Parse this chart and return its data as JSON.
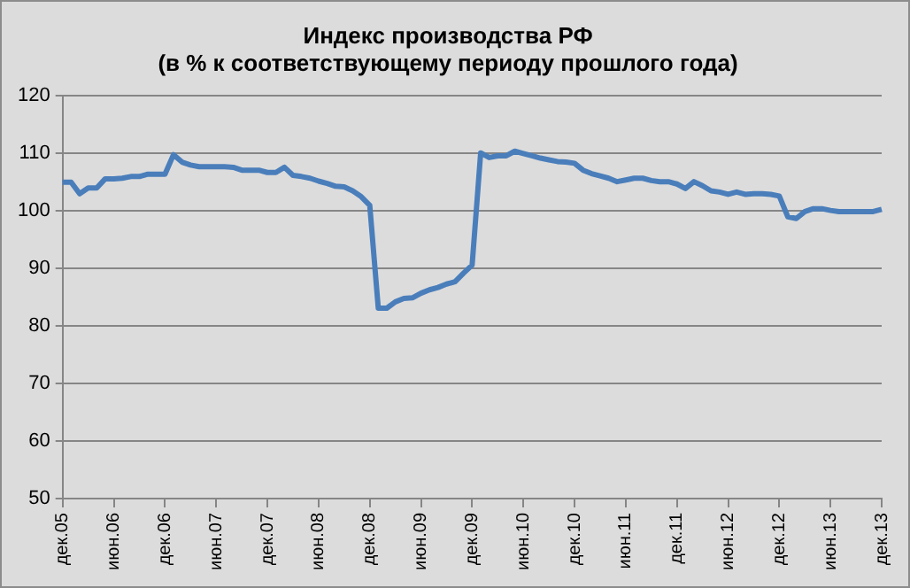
{
  "chart_data": {
    "type": "line",
    "title": "Индекс производства РФ\n(в % к соответствующему периоду прошлого года)",
    "categories": [
      "дек.05",
      null,
      null,
      null,
      null,
      null,
      "июн.06",
      null,
      null,
      null,
      null,
      null,
      "дек.06",
      null,
      null,
      null,
      null,
      null,
      "июн.07",
      null,
      null,
      null,
      null,
      null,
      "дек.07",
      null,
      null,
      null,
      null,
      null,
      "июн.08",
      null,
      null,
      null,
      null,
      null,
      "дек.08",
      null,
      null,
      null,
      null,
      null,
      "июн.09",
      null,
      null,
      null,
      null,
      null,
      "дек.09",
      null,
      null,
      null,
      null,
      null,
      "июн.10",
      null,
      null,
      null,
      null,
      null,
      "дек.10",
      null,
      null,
      null,
      null,
      null,
      "июн.11",
      null,
      null,
      null,
      null,
      null,
      "дек.11",
      null,
      null,
      null,
      null,
      null,
      "июн.12",
      null,
      null,
      null,
      null,
      null,
      "дек.12",
      null,
      null,
      null,
      null,
      null,
      "июн.13",
      null,
      null,
      null,
      null,
      null,
      "дек.13"
    ],
    "series": [
      {
        "color": "#4a7ebb",
        "values": [
          105,
          105,
          103,
          104,
          104,
          105.6,
          105.6,
          105.7,
          106,
          106,
          106.4,
          106.4,
          106.4,
          109.8,
          108.5,
          108,
          107.7,
          107.7,
          107.7,
          107.7,
          107.6,
          107.1,
          107.1,
          107.1,
          106.7,
          106.7,
          107.6,
          106.2,
          106,
          105.7,
          105.2,
          104.8,
          104.3,
          104.2,
          103.5,
          102.5,
          101,
          83.1,
          83.1,
          84.2,
          84.8,
          84.9,
          85.7,
          86.3,
          86.7,
          87.3,
          87.7,
          89.2,
          90.6,
          110.1,
          109.3,
          109.6,
          109.6,
          110.4,
          110,
          109.6,
          109.2,
          108.9,
          108.6,
          108.5,
          108.3,
          107.1,
          106.5,
          106.1,
          105.7,
          105.1,
          105.4,
          105.7,
          105.7,
          105.3,
          105.1,
          105.1,
          104.7,
          103.9,
          105.1,
          104.4,
          103.5,
          103.3,
          102.9,
          103.3,
          102.9,
          103,
          103,
          102.9,
          102.6,
          99,
          98.7,
          99.9,
          100.4,
          100.4,
          100.1,
          99.9,
          99.9,
          99.9,
          99.9,
          99.9,
          100.3
        ]
      }
    ],
    "ylim": [
      50,
      120
    ],
    "yticks": [
      50,
      60,
      70,
      80,
      90,
      100,
      110,
      120
    ],
    "grid": "y",
    "legend": false,
    "marker": "none",
    "line_style": "solid"
  }
}
